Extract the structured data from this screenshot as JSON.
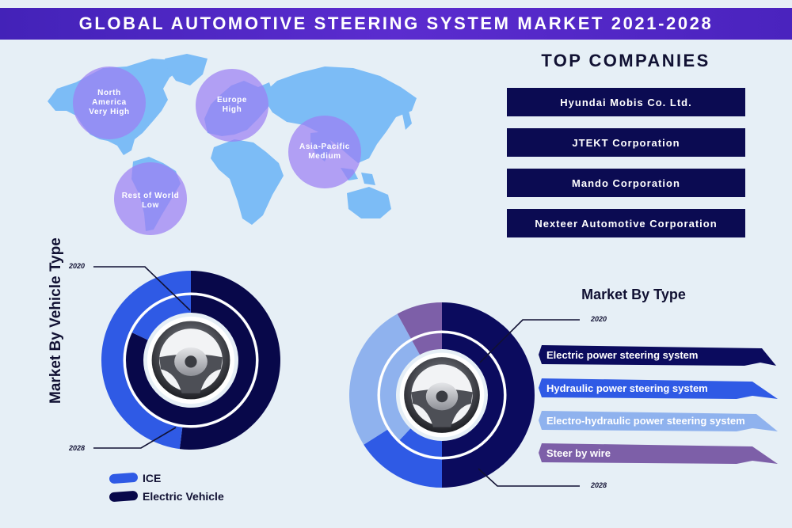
{
  "header": {
    "title": "GLOBAL AUTOMOTIVE STEERING SYSTEM MARKET 2021-2028"
  },
  "regions": [
    {
      "name": "North America",
      "level": "Very High"
    },
    {
      "name": "Europe",
      "level": "High"
    },
    {
      "name": "Asia-Pacific",
      "level": "Medium"
    },
    {
      "name": "Rest of World",
      "level": "Low"
    }
  ],
  "companies": {
    "title": "TOP COMPANIES",
    "items": [
      "Hyundai Mobis Co. Ltd.",
      "JTEKT Corporation",
      "Mando Corporation",
      "Nexteer Automotive Corporation"
    ]
  },
  "chart_data": [
    {
      "type": "pie",
      "title": "Market By Vehicle Type",
      "rings": [
        {
          "year": "2028",
          "position": "outer",
          "values": [
            48,
            52
          ]
        },
        {
          "year": "2020",
          "position": "inner",
          "values": [
            18,
            82
          ]
        }
      ],
      "categories": [
        "ICE",
        "Electric Vehicle"
      ],
      "colors": [
        "#2f5ae5",
        "#08084a"
      ],
      "legend": "bottom-left"
    },
    {
      "type": "pie",
      "title": "Market By Type",
      "rings": [
        {
          "year": "2028",
          "position": "outer",
          "values": [
            50,
            16,
            26,
            8
          ]
        },
        {
          "year": "2020",
          "position": "inner",
          "values": [
            50,
            12,
            30,
            8
          ]
        }
      ],
      "categories": [
        "Electric power steering system",
        "Hydraulic power steering system",
        "Electro-hydraulic power steering system",
        "Steer by wire"
      ],
      "colors": [
        "#0b0b5e",
        "#2f5ae5",
        "#8fb2ee",
        "#7d5fa8"
      ],
      "legend": "right"
    }
  ]
}
